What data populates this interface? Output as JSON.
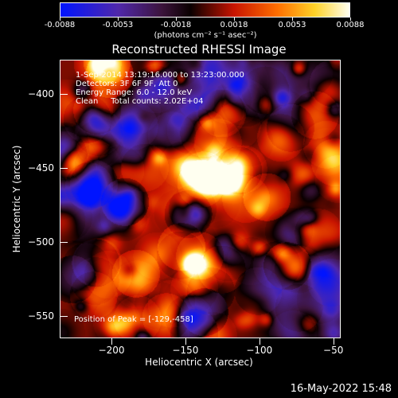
{
  "colorbar": {
    "tick_labels": [
      "-0.0088",
      "-0.0053",
      "-0.0018",
      "0.0018",
      "0.0053",
      "0.0088"
    ],
    "range": [
      -0.0088,
      0.0088
    ],
    "unit_label": "(photons cm⁻² s⁻¹ asec⁻²)"
  },
  "title": "Reconstructed RHESSI Image",
  "annotations": {
    "time": "1-Sep-2014 13:19:16.000 to 13:23:00.000",
    "detectors": "Detectors: 3F 6F 9F, Att 0",
    "energy": "Energy Range: 6.0 - 12.0 keV",
    "clean": "Clean     Total counts: 2.02E+04",
    "peak": "Position of Peak = [-129,-458]"
  },
  "timestamp": "16-May-2022 15:48",
  "chart_data": {
    "type": "heatmap",
    "title": "Reconstructed RHESSI Image",
    "xlabel": "Heliocentric X (arcsec)",
    "ylabel": "Heliocentric Y (arcsec)",
    "xlim": [
      -235,
      -45
    ],
    "ylim": [
      -565,
      -377
    ],
    "x_ticks": [
      -200,
      -150,
      -100,
      -50
    ],
    "y_ticks": [
      -400,
      -450,
      -500,
      -550
    ],
    "x_tick_labels": [
      "−200",
      "−150",
      "−100",
      "−50"
    ],
    "y_tick_labels": [
      "−400",
      "−450",
      "−500",
      "−550"
    ],
    "peak": {
      "x": -129,
      "y": -458
    },
    "colormap": "red-temperature (blue→purple→black→red→orange→yellow→white)",
    "value_range": [
      -0.0088,
      0.0088
    ]
  }
}
